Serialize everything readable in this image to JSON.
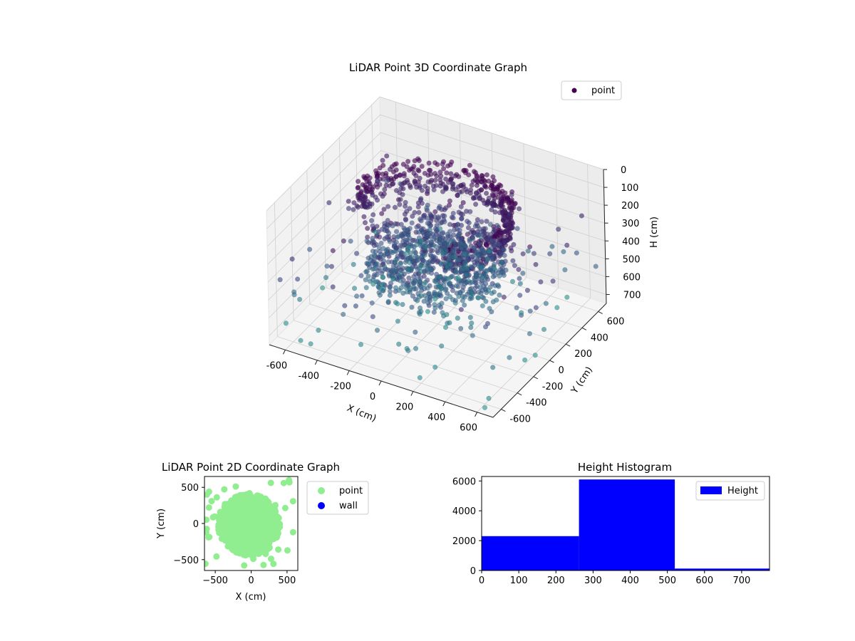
{
  "chart_data": [
    {
      "type": "scatter",
      "projection": "3d",
      "title": "LiDAR Point 3D Coordinate Graph",
      "xlabel": "X (cm)",
      "ylabel": "Y (cm)",
      "zlabel": "H (cm)",
      "xlim": [
        -700,
        700
      ],
      "ylim": [
        -700,
        700
      ],
      "zlim": [
        0,
        750
      ],
      "z_axis_inverted": true,
      "x_ticks": [
        "-600",
        "-400",
        "-200",
        "0",
        "200",
        "400",
        "600"
      ],
      "y_ticks": [
        "-600",
        "-400",
        "-200",
        "0",
        "200",
        "400",
        "600"
      ],
      "z_ticks": [
        "0",
        "100",
        "200",
        "300",
        "400",
        "500",
        "600",
        "700"
      ],
      "colormap": "viridis",
      "legend": {
        "placement": "top-right",
        "entries": [
          {
            "name": "point",
            "color": "#440154"
          }
        ]
      },
      "series": [
        {
          "name": "point",
          "color_by": "height",
          "point_count": 8500
        }
      ]
    },
    {
      "type": "scatter",
      "title": "LiDAR Point 2D Coordinate Graph",
      "xlabel": "X (cm)",
      "ylabel": "Y (cm)",
      "xlim": [
        -650,
        650
      ],
      "ylim": [
        -650,
        650
      ],
      "x_ticks": [
        "−500",
        "0",
        "500"
      ],
      "y_ticks": [
        "−500",
        "0",
        "500"
      ],
      "legend": {
        "placement": "outside-right",
        "entries": [
          {
            "name": "point",
            "color": "#90ee90"
          },
          {
            "name": "wall",
            "color": "#0000ff"
          }
        ]
      },
      "series": [
        {
          "name": "point",
          "color": "#90ee90",
          "dense_region": {
            "center": [
              -30,
              -20
            ],
            "radius": 430
          }
        },
        {
          "name": "wall",
          "color": "#0000ff",
          "values": []
        }
      ]
    },
    {
      "type": "bar",
      "subtype": "histogram",
      "title": "Height Histogram",
      "xlim": [
        0,
        775
      ],
      "ylim": [
        0,
        6300
      ],
      "x_ticks": [
        "0",
        "100",
        "200",
        "300",
        "400",
        "500",
        "600",
        "700"
      ],
      "y_ticks": [
        "0",
        "2000",
        "4000",
        "6000"
      ],
      "legend": {
        "placement": "top-right",
        "entries": [
          {
            "name": "Height",
            "color": "#0000ff"
          }
        ]
      },
      "bins": [
        [
          0,
          262
        ],
        [
          262,
          520
        ],
        [
          520,
          775
        ]
      ],
      "values": [
        2300,
        6100,
        130
      ],
      "color": "#0000ff"
    }
  ]
}
